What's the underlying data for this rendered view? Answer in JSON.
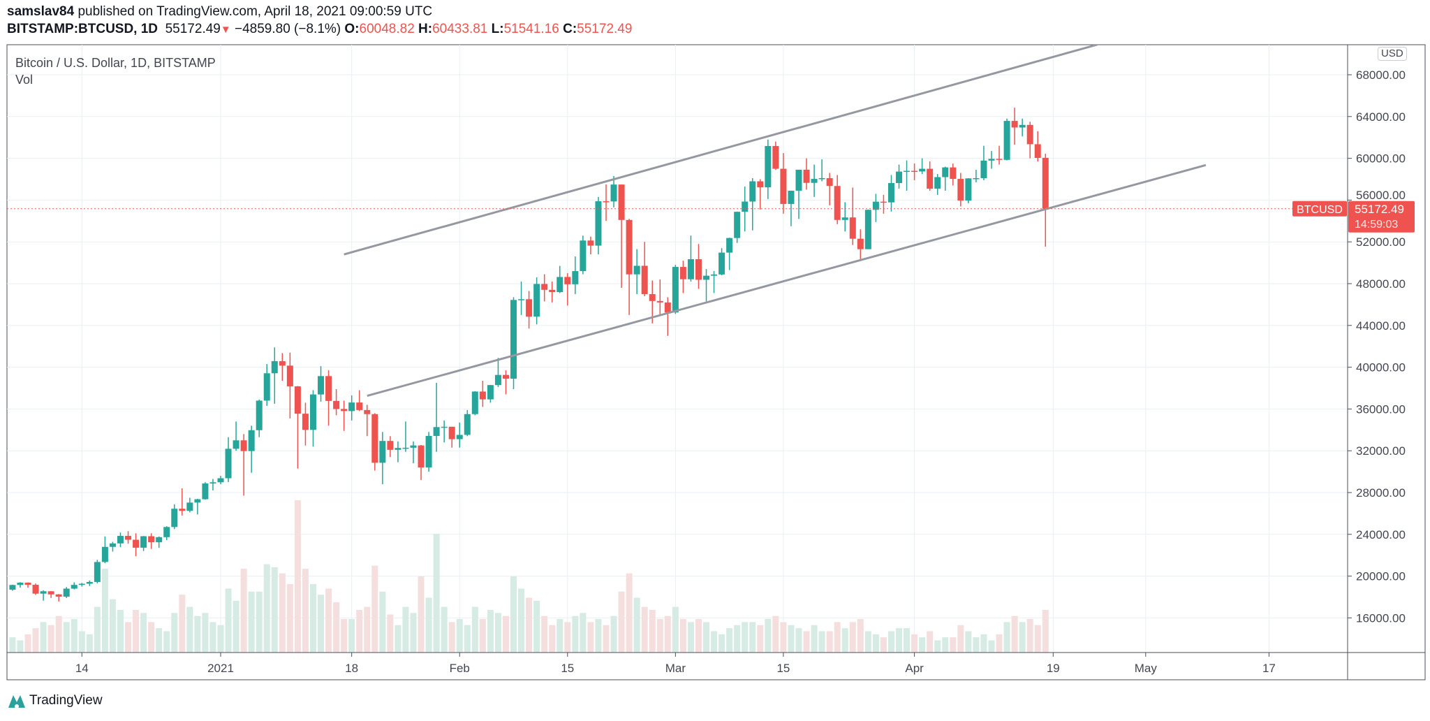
{
  "header": {
    "author": "samslav84",
    "published": "published on TradingView.com, April 18, 2021 09:00:59 UTC",
    "symbol": "BITSTAMP:BTCUSD, 1D",
    "last": "55172.49",
    "change": "−4859.80 (−8.1%)",
    "o_label": "O:",
    "o": "60048.82",
    "h_label": "H:",
    "h": "60433.81",
    "l_label": "L:",
    "l": "51541.16",
    "c_label": "C:",
    "c": "55172.49"
  },
  "legend": {
    "title": "Bitcoin / U.S. Dollar, 1D, BITSTAMP",
    "vol": "Vol"
  },
  "price_axis": {
    "currency": "USD",
    "badge_symbol": "BTCUSD",
    "badge_price": "55172.49",
    "badge_countdown": "14:59:03"
  },
  "footer": {
    "brand": "TradingView"
  },
  "colors": {
    "up": "#26a69a",
    "down": "#ef5350",
    "vol_up": "#d5ebe3",
    "vol_down": "#f5dede",
    "grid": "#e9eff3",
    "trendline": "#9598a1"
  },
  "chart_data": {
    "type": "candlestick",
    "title": "Bitcoin / U.S. Dollar, 1D, BITSTAMP",
    "start_date": "2020-12-05",
    "ylim": [
      12400,
      71200
    ],
    "last_price": 55172.49,
    "y_ticks": [
      "16000.00",
      "20000.00",
      "24000.00",
      "28000.00",
      "32000.00",
      "36000.00",
      "40000.00",
      "44000.00",
      "48000.00",
      "52000.00",
      "56000.00",
      "60000.00",
      "64000.00",
      "68000.00"
    ],
    "x_ticks": [
      {
        "label": "14",
        "day": 9
      },
      {
        "label": "2021",
        "day": 27
      },
      {
        "label": "18",
        "day": 44
      },
      {
        "label": "Feb",
        "day": 58
      },
      {
        "label": "15",
        "day": 72
      },
      {
        "label": "Mar",
        "day": 86
      },
      {
        "label": "15",
        "day": 100
      },
      {
        "label": "Apr",
        "day": 117
      },
      {
        "label": "19",
        "day": 135
      },
      {
        "label": "May",
        "day": 147
      },
      {
        "label": "17",
        "day": 163
      }
    ],
    "trendlines": [
      {
        "name": "upper-channel",
        "from": {
          "day": 43,
          "price": 50800
        },
        "to": {
          "day": 140.7,
          "price": 70880
        }
      },
      {
        "name": "lower-channel",
        "from": {
          "day": 46,
          "price": 37260
        },
        "to": {
          "day": 154.8,
          "price": 59350
        }
      }
    ],
    "ohlc": [
      [
        18700,
        19180,
        18600,
        19150
      ],
      [
        19150,
        19420,
        18900,
        19370
      ],
      [
        19370,
        19400,
        18900,
        19170
      ],
      [
        19170,
        19290,
        18200,
        18320
      ],
      [
        18320,
        18640,
        17650,
        18550
      ],
      [
        18550,
        18560,
        17910,
        18250
      ],
      [
        18250,
        18280,
        17570,
        18030
      ],
      [
        18030,
        18950,
        17900,
        18800
      ],
      [
        18800,
        19400,
        18730,
        19160
      ],
      [
        19160,
        19350,
        19000,
        19270
      ],
      [
        19270,
        19570,
        19050,
        19440
      ],
      [
        19440,
        21560,
        19300,
        21350
      ],
      [
        21350,
        23800,
        21230,
        22800
      ],
      [
        22800,
        23280,
        22350,
        23130
      ],
      [
        23130,
        24170,
        22770,
        23850
      ],
      [
        23850,
        24300,
        23100,
        23480
      ],
      [
        23480,
        24100,
        21900,
        22720
      ],
      [
        22720,
        23840,
        22400,
        23820
      ],
      [
        23820,
        24100,
        22600,
        23240
      ],
      [
        23240,
        23800,
        22700,
        23730
      ],
      [
        23730,
        24780,
        23450,
        24700
      ],
      [
        24700,
        26870,
        24500,
        26450
      ],
      [
        26450,
        28400,
        25800,
        26250
      ],
      [
        26250,
        27500,
        26100,
        27040
      ],
      [
        27040,
        27400,
        25900,
        27360
      ],
      [
        27360,
        28990,
        27320,
        28870
      ],
      [
        28870,
        29300,
        28200,
        28980
      ],
      [
        28980,
        29600,
        28800,
        29370
      ],
      [
        29370,
        33300,
        29000,
        32190
      ],
      [
        32190,
        34800,
        32000,
        33000
      ],
      [
        33000,
        33600,
        27700,
        31970
      ],
      [
        31970,
        34400,
        29900,
        33970
      ],
      [
        33970,
        36900,
        33300,
        36800
      ],
      [
        36800,
        40300,
        36300,
        39420
      ],
      [
        39420,
        41900,
        36500,
        40580
      ],
      [
        40580,
        41350,
        38700,
        40150
      ],
      [
        40150,
        41400,
        35100,
        38170
      ],
      [
        38170,
        38200,
        30300,
        35550
      ],
      [
        35550,
        36600,
        32500,
        34000
      ],
      [
        34000,
        37800,
        32400,
        37390
      ],
      [
        37390,
        40100,
        36700,
        39150
      ],
      [
        39150,
        39700,
        34400,
        36770
      ],
      [
        36770,
        37900,
        35400,
        36000
      ],
      [
        36000,
        36800,
        33900,
        35800
      ],
      [
        35800,
        37300,
        34900,
        36620
      ],
      [
        36620,
        37800,
        35800,
        35900
      ],
      [
        35900,
        36400,
        33400,
        35510
      ],
      [
        35510,
        35600,
        30100,
        30850
      ],
      [
        30850,
        33800,
        28800,
        32940
      ],
      [
        32940,
        33400,
        31400,
        32090
      ],
      [
        32090,
        32900,
        30900,
        32270
      ],
      [
        32270,
        34800,
        31900,
        32290
      ],
      [
        32290,
        32900,
        30800,
        32510
      ],
      [
        32510,
        32550,
        29200,
        30400
      ],
      [
        30400,
        33800,
        30000,
        33420
      ],
      [
        33420,
        38500,
        31900,
        34270
      ],
      [
        34270,
        34900,
        32800,
        34300
      ],
      [
        34300,
        34300,
        32300,
        33110
      ],
      [
        33110,
        34700,
        32300,
        33520
      ],
      [
        33520,
        35900,
        33400,
        35510
      ],
      [
        35510,
        37700,
        35400,
        37670
      ],
      [
        37670,
        38700,
        36200,
        36920
      ],
      [
        36920,
        38300,
        36600,
        38290
      ],
      [
        38290,
        40900,
        38100,
        39260
      ],
      [
        39260,
        39700,
        37400,
        38900
      ],
      [
        38900,
        46700,
        37900,
        46440
      ],
      [
        46440,
        48200,
        45000,
        46510
      ],
      [
        46510,
        47300,
        43700,
        44840
      ],
      [
        44840,
        48600,
        44100,
        47970
      ],
      [
        47970,
        48900,
        46300,
        47410
      ],
      [
        47410,
        48200,
        46200,
        47190
      ],
      [
        47190,
        49700,
        47100,
        48640
      ],
      [
        48640,
        49000,
        45900,
        47940
      ],
      [
        47940,
        50600,
        47000,
        49200
      ],
      [
        49200,
        52600,
        48900,
        52130
      ],
      [
        52130,
        52500,
        50800,
        51640
      ],
      [
        51640,
        56300,
        50800,
        55890
      ],
      [
        55890,
        57500,
        54000,
        55870
      ],
      [
        55870,
        58300,
        55300,
        57490
      ],
      [
        57490,
        57500,
        47600,
        54100
      ],
      [
        54100,
        54200,
        45000,
        48890
      ],
      [
        48890,
        51300,
        47000,
        49710
      ],
      [
        49710,
        52000,
        46800,
        47000
      ],
      [
        47000,
        48300,
        44200,
        46340
      ],
      [
        46340,
        48400,
        45000,
        46200
      ],
      [
        46200,
        46700,
        43000,
        45240
      ],
      [
        45240,
        49800,
        45100,
        49600
      ],
      [
        49600,
        50200,
        47100,
        48420
      ],
      [
        48420,
        52600,
        48200,
        50340
      ],
      [
        50340,
        51800,
        47500,
        48370
      ],
      [
        48370,
        49400,
        46300,
        48760
      ],
      [
        48760,
        49200,
        47100,
        48880
      ],
      [
        48880,
        51400,
        48800,
        50970
      ],
      [
        50970,
        52400,
        49300,
        52370
      ],
      [
        52370,
        54900,
        51900,
        54880
      ],
      [
        54880,
        57300,
        53000,
        55860
      ],
      [
        55860,
        58100,
        53100,
        57800
      ],
      [
        57800,
        58000,
        55100,
        57220
      ],
      [
        57220,
        61800,
        56100,
        61180
      ],
      [
        61180,
        61600,
        58900,
        59000
      ],
      [
        59000,
        60500,
        54700,
        55630
      ],
      [
        55630,
        56900,
        53500,
        56900
      ],
      [
        56900,
        58900,
        54200,
        58910
      ],
      [
        58910,
        60000,
        57000,
        57650
      ],
      [
        57650,
        59400,
        56300,
        58030
      ],
      [
        58030,
        59900,
        57800,
        58100
      ],
      [
        58100,
        58600,
        55500,
        57350
      ],
      [
        57350,
        58400,
        53700,
        54100
      ],
      [
        54100,
        55800,
        53000,
        54340
      ],
      [
        54340,
        57200,
        51700,
        52300
      ],
      [
        52300,
        53200,
        50300,
        51300
      ],
      [
        51300,
        55100,
        51300,
        55070
      ],
      [
        55070,
        56600,
        53900,
        55850
      ],
      [
        55850,
        56500,
        54700,
        55780
      ],
      [
        55780,
        58400,
        54900,
        57630
      ],
      [
        57630,
        59400,
        57100,
        58730
      ],
      [
        58730,
        59800,
        56900,
        58800
      ],
      [
        58800,
        59500,
        57900,
        58740
      ],
      [
        58740,
        60000,
        58500,
        59000
      ],
      [
        59000,
        59700,
        56900,
        57090
      ],
      [
        57090,
        58500,
        56500,
        58200
      ],
      [
        58200,
        59200,
        56900,
        59130
      ],
      [
        59130,
        59500,
        57400,
        58030
      ],
      [
        58030,
        58600,
        55400,
        55950
      ],
      [
        55950,
        58100,
        55700,
        58080
      ],
      [
        58080,
        58900,
        57700,
        58100
      ],
      [
        58100,
        61200,
        57900,
        59780
      ],
      [
        59780,
        60700,
        59000,
        59950
      ],
      [
        59950,
        61200,
        59400,
        59850
      ],
      [
        59850,
        63800,
        59800,
        63580
      ],
      [
        63580,
        64850,
        61300,
        62950
      ],
      [
        62950,
        63800,
        62100,
        63200
      ],
      [
        63200,
        63500,
        60000,
        61350
      ],
      [
        61350,
        62600,
        59700,
        60040
      ],
      [
        60048.82,
        60433.81,
        51541.16,
        55172.49
      ]
    ],
    "volume_relative": [
      10,
      8,
      12,
      16,
      20,
      18,
      24,
      20,
      22,
      14,
      12,
      30,
      55,
      35,
      28,
      20,
      28,
      26,
      20,
      16,
      14,
      26,
      38,
      30,
      24,
      26,
      20,
      18,
      42,
      34,
      55,
      40,
      40,
      58,
      56,
      52,
      45,
      100,
      55,
      45,
      38,
      42,
      33,
      22,
      22,
      28,
      30,
      57,
      40,
      25,
      18,
      30,
      26,
      50,
      36,
      78,
      30,
      20,
      22,
      18,
      30,
      22,
      28,
      26,
      24,
      50,
      42,
      36,
      34,
      24,
      18,
      22,
      20,
      24,
      26,
      20,
      22,
      18,
      24,
      40,
      52,
      36,
      30,
      28,
      22,
      24,
      30,
      22,
      20,
      22,
      20,
      14,
      12,
      16,
      18,
      20,
      20,
      18,
      22,
      24,
      20,
      18,
      16,
      14,
      18,
      14,
      14,
      20,
      16,
      20,
      22,
      14,
      12,
      10,
      14,
      16,
      16,
      12,
      10,
      14,
      8,
      10,
      10,
      18,
      14,
      10,
      12,
      8,
      12,
      20,
      24,
      20,
      22,
      18,
      28
    ]
  }
}
